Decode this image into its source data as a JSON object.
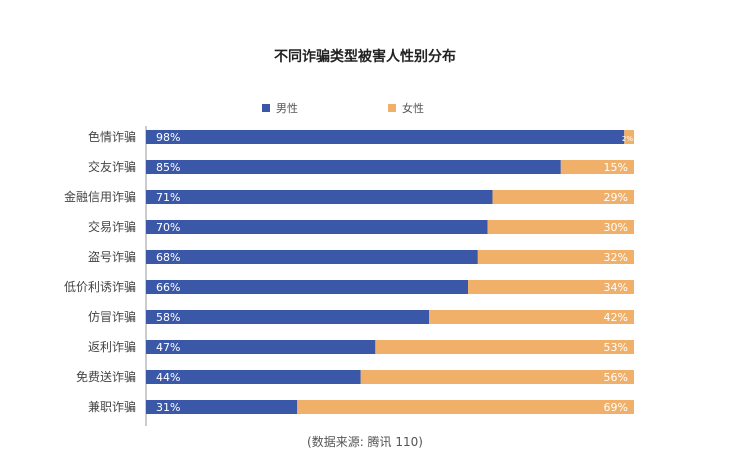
{
  "chart_data": {
    "type": "bar",
    "orientation": "horizontal",
    "stacked": true,
    "percent": true,
    "title": "不同诈骗类型被害人性别分布",
    "source": "(数据来源: 腾讯 110)",
    "categories": [
      "色情诈骗",
      "交友诈骗",
      "金融信用诈骗",
      "交易诈骗",
      "盗号诈骗",
      "低价利诱诈骗",
      "仿冒诈骗",
      "返利诈骗",
      "免费送诈骗",
      "兼职诈骗"
    ],
    "series": [
      {
        "name": "男性",
        "color": "#3a58a7",
        "values": [
          98,
          85,
          71,
          70,
          68,
          66,
          58,
          47,
          44,
          31
        ]
      },
      {
        "name": "女性",
        "color": "#f0b06a",
        "values": [
          2,
          15,
          29,
          30,
          32,
          34,
          42,
          53,
          56,
          69
        ]
      }
    ],
    "xlim": [
      0,
      100
    ],
    "legend_position": "top-center",
    "grid": false
  }
}
